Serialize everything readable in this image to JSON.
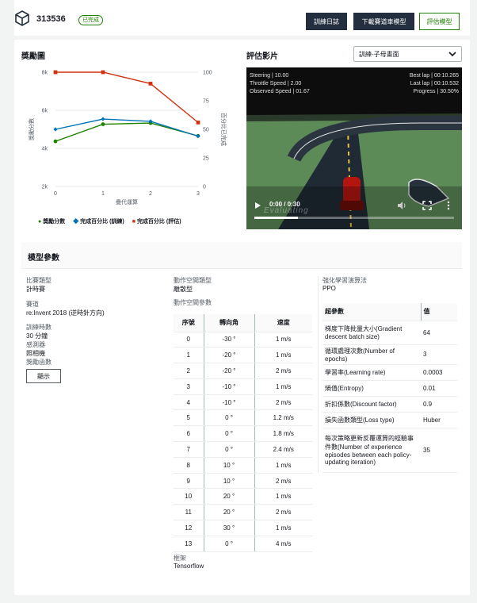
{
  "header": {
    "model_name": "313536",
    "status": "已完成",
    "buttons": {
      "logs": "訓練日誌",
      "download": "下載賽道車模型",
      "evaluate": "評估模型"
    }
  },
  "reward_chart": {
    "title": "獎勵圖",
    "legend": [
      "獎勵分數",
      "完成百分比 (訓練)",
      "完成百分比 (評估)"
    ]
  },
  "chart_data": {
    "type": "line",
    "x": [
      0,
      1,
      2,
      3
    ],
    "xlabel": "疊代運算",
    "ylabel": "獎勵分數",
    "y2label": "百分比已完成",
    "ylim": [
      2000,
      6000
    ],
    "y2lim": [
      0,
      100
    ],
    "yticks": [
      "2k",
      "4k",
      "6k",
      "8k"
    ],
    "yticks_vals": [
      2000,
      4000,
      6000,
      8000
    ],
    "y2ticks": [
      0,
      25,
      50,
      75,
      100
    ],
    "series": [
      {
        "name": "獎勵分數",
        "axis": "left",
        "color": "#1d8102",
        "marker": "circle",
        "values": [
          3580,
          4180,
          4220,
          3770
        ]
      },
      {
        "name": "完成百分比 (訓練)",
        "axis": "right",
        "color": "#0073bb",
        "marker": "diamond",
        "values": [
          50,
          59,
          57,
          44
        ]
      },
      {
        "name": "完成百分比 (評估)",
        "axis": "right",
        "color": "#d13212",
        "marker": "square",
        "values": [
          100,
          100,
          90,
          56
        ]
      }
    ]
  },
  "eval_video": {
    "title": "評估影片",
    "select_value": "訓練-子母畫面",
    "overlay": {
      "steering": "Steering | 10.00",
      "throttle": "Throttle Speed | 2.00",
      "observed": "Observed Speed | 01.67",
      "best_lap": "Best lap | 00:10.265",
      "last_lap": "Last lap | 00:10.532",
      "progress": "Progress | 30.50%"
    },
    "time": "0:00 / 0:30",
    "watermark": "Evaluating"
  },
  "model_params": {
    "title": "模型參數",
    "col1": [
      {
        "label": "比賽類型",
        "value": "計時賽"
      },
      {
        "label": "賽道",
        "value": "re:Invent 2018 (逆時針方向)"
      },
      {
        "label": "訓練時數",
        "value": "30 分鐘"
      },
      {
        "label": "感測器",
        "value": "照相機"
      },
      {
        "label": "獎勵函數",
        "value": ""
      }
    ],
    "show_button": "顯示",
    "action_space_type_label": "動作空間類型",
    "action_space_type": "離散型",
    "action_space_params_label": "動作空間參數",
    "action_headers": [
      "序號",
      "轉向角",
      "速度"
    ],
    "actions": [
      [
        "0",
        "-30 °",
        "1 m/s"
      ],
      [
        "1",
        "-20 °",
        "1 m/s"
      ],
      [
        "2",
        "-20 °",
        "2 m/s"
      ],
      [
        "3",
        "-10 °",
        "1 m/s"
      ],
      [
        "4",
        "-10 °",
        "2 m/s"
      ],
      [
        "5",
        "0 °",
        "1.2 m/s"
      ],
      [
        "6",
        "0 °",
        "1.8 m/s"
      ],
      [
        "7",
        "0 °",
        "2.4 m/s"
      ],
      [
        "8",
        "10 °",
        "1 m/s"
      ],
      [
        "9",
        "10 °",
        "2 m/s"
      ],
      [
        "10",
        "20 °",
        "1 m/s"
      ],
      [
        "11",
        "20 °",
        "2 m/s"
      ],
      [
        "12",
        "30 °",
        "1 m/s"
      ],
      [
        "13",
        "0 °",
        "4 m/s"
      ]
    ],
    "framework_label": "框架",
    "framework": "Tensorflow",
    "algorithm_label": "強化學習演算法",
    "algorithm": "PPO",
    "hp_headers": [
      "超參數",
      "值"
    ],
    "hyperparameters": [
      [
        "梯度下降批量大小(Gradient descent batch size)",
        "64"
      ],
      [
        "循環處理次數(Number of epochs)",
        "3"
      ],
      [
        "學習率(Learning rate)",
        "0.0003"
      ],
      [
        "熵值(Entropy)",
        "0.01"
      ],
      [
        "折扣係數(Discount factor)",
        "0.9"
      ],
      [
        "損失函數類型(Loss type)",
        "Huber"
      ],
      [
        "每次策略更新反覆運算的經驗事件數(Number of experience episodes between each policy-updating iteration)",
        "35"
      ]
    ]
  }
}
